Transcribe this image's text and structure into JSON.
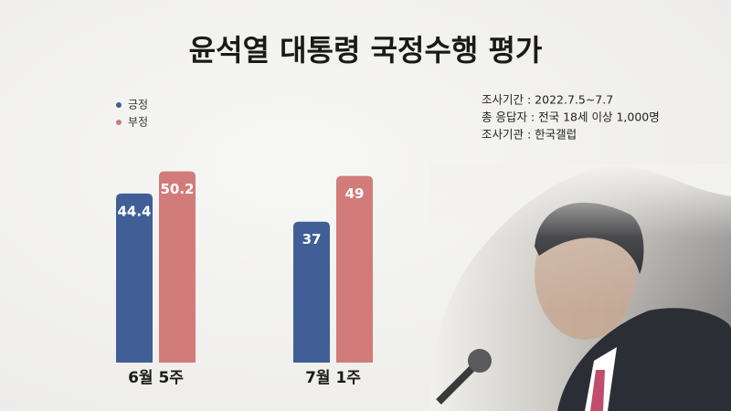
{
  "chart_data": {
    "type": "bar",
    "title": "윤석열 대통령 국정수행 평가",
    "categories": [
      "6월 5주",
      "7월 1주"
    ],
    "series": [
      {
        "name": "긍정",
        "color": "#3f5f96",
        "values": [
          44.4,
          37
        ]
      },
      {
        "name": "부정",
        "color": "#d27b7b",
        "values": [
          50.2,
          49
        ]
      }
    ],
    "annotations": [
      "조사기간 : 2022.7.5~7.7",
      "총 응답자 : 전국 18세 이상 1,000명",
      "조사기관 : 한국갤럽"
    ]
  }
}
